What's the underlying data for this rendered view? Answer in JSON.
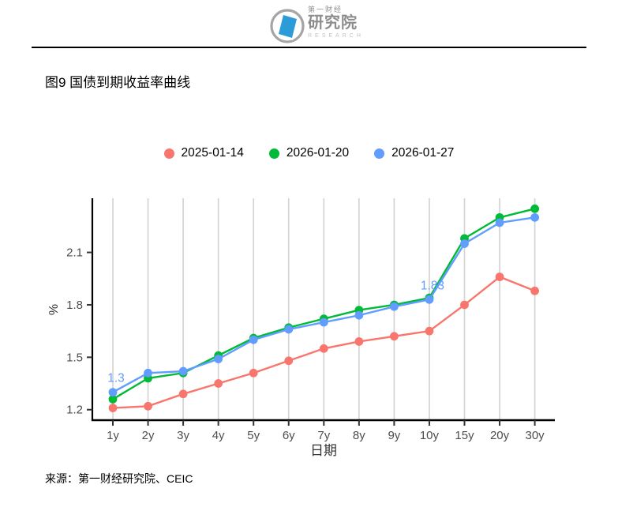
{
  "logo": {
    "top": "第一财经",
    "main": "研究院",
    "sub": "RESEARCH"
  },
  "title": "图9 国债到期收益率曲线",
  "legend": [
    {
      "label": "2025-01-14",
      "color": "#F8766D"
    },
    {
      "label": "2026-01-20",
      "color": "#00BA38"
    },
    {
      "label": "2026-01-27",
      "color": "#619CFF"
    }
  ],
  "chart_data": {
    "type": "line",
    "title": "图9 国债到期收益率曲线",
    "xlabel": "日期",
    "ylabel": "%",
    "categories": [
      "1y",
      "2y",
      "3y",
      "4y",
      "5y",
      "6y",
      "7y",
      "8y",
      "9y",
      "10y",
      "15y",
      "20y",
      "30y"
    ],
    "series": [
      {
        "name": "2025-01-14",
        "color": "#F8766D",
        "values": [
          1.21,
          1.22,
          1.29,
          1.35,
          1.41,
          1.48,
          1.55,
          1.59,
          1.62,
          1.65,
          1.8,
          1.96,
          1.88
        ]
      },
      {
        "name": "2026-01-20",
        "color": "#00BA38",
        "values": [
          1.26,
          1.38,
          1.41,
          1.51,
          1.61,
          1.67,
          1.72,
          1.77,
          1.8,
          1.84,
          2.18,
          2.3,
          2.35
        ]
      },
      {
        "name": "2026-01-27",
        "color": "#619CFF",
        "values": [
          1.3,
          1.41,
          1.42,
          1.49,
          1.6,
          1.66,
          1.7,
          1.74,
          1.79,
          1.83,
          2.15,
          2.27,
          2.3
        ]
      }
    ],
    "annotations": [
      {
        "text": "1.3",
        "series": "2026-01-27",
        "category": "1y",
        "color": "#619CFF"
      },
      {
        "text": "1.83",
        "series": "2026-01-27",
        "category": "10y",
        "color": "#619CFF"
      }
    ],
    "yticks": [
      1.2,
      1.5,
      1.8,
      2.1
    ],
    "ylim": [
      1.14,
      2.41
    ],
    "grid": "vertical-only",
    "legend_position": "top"
  },
  "source": "来源：第一财经研究院、CEIC"
}
